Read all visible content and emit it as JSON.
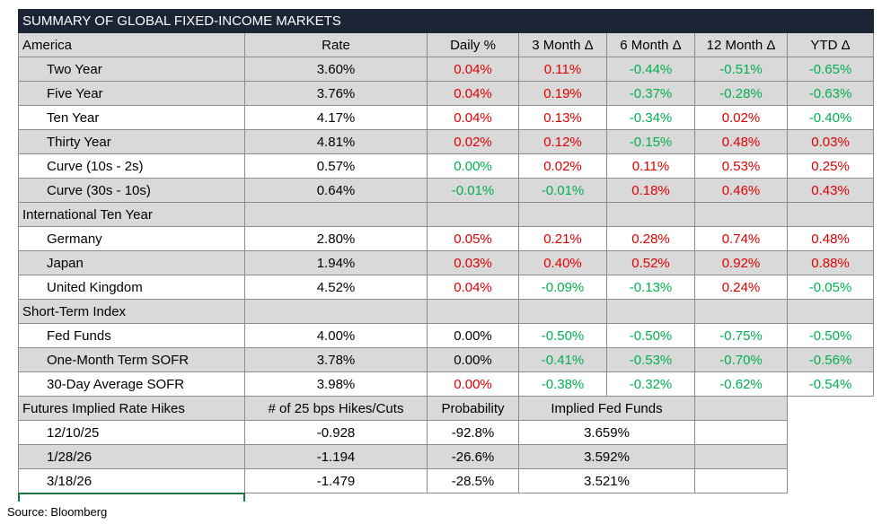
{
  "title": "SUMMARY OF GLOBAL FIXED-INCOME MARKETS",
  "columns": [
    "America",
    "Rate",
    "Daily %",
    "3 Month Δ",
    "6 Month Δ",
    "12 Month Δ",
    "YTD Δ"
  ],
  "groups": [
    {
      "rows": [
        {
          "label": "Two Year",
          "shaded": true,
          "values": [
            "3.60%",
            "0.04%",
            "0.11%",
            "-0.44%",
            "-0.51%",
            "-0.65%"
          ],
          "colors": [
            "#000000",
            "#e00000",
            "#e00000",
            "#00b050",
            "#00b050",
            "#00b050"
          ]
        },
        {
          "label": "Five Year",
          "shaded": true,
          "values": [
            "3.76%",
            "0.04%",
            "0.19%",
            "-0.37%",
            "-0.28%",
            "-0.63%"
          ],
          "colors": [
            "#000000",
            "#e00000",
            "#e00000",
            "#00b050",
            "#00b050",
            "#00b050"
          ]
        },
        {
          "label": "Ten Year",
          "shaded": false,
          "values": [
            "4.17%",
            "0.04%",
            "0.13%",
            "-0.34%",
            "0.02%",
            "-0.40%"
          ],
          "colors": [
            "#000000",
            "#e00000",
            "#e00000",
            "#00b050",
            "#e00000",
            "#00b050"
          ]
        },
        {
          "label": "Thirty Year",
          "shaded": true,
          "values": [
            "4.81%",
            "0.02%",
            "0.12%",
            "-0.15%",
            "0.48%",
            "0.03%"
          ],
          "colors": [
            "#000000",
            "#e00000",
            "#e00000",
            "#00b050",
            "#e00000",
            "#e00000"
          ]
        },
        {
          "label": "Curve (10s - 2s)",
          "shaded": false,
          "values": [
            "0.57%",
            "0.00%",
            "0.02%",
            "0.11%",
            "0.53%",
            "0.25%"
          ],
          "colors": [
            "#000000",
            "#00b050",
            "#e00000",
            "#e00000",
            "#e00000",
            "#e00000"
          ]
        },
        {
          "label": "Curve (30s - 10s)",
          "shaded": true,
          "values": [
            "0.64%",
            "-0.01%",
            "-0.01%",
            "0.18%",
            "0.46%",
            "0.43%"
          ],
          "colors": [
            "#000000",
            "#00b050",
            "#00b050",
            "#e00000",
            "#e00000",
            "#e00000"
          ]
        }
      ]
    },
    {
      "title": "International Ten Year",
      "rows": [
        {
          "label": "Germany",
          "shaded": false,
          "values": [
            "2.80%",
            "0.05%",
            "0.21%",
            "0.28%",
            "0.74%",
            "0.48%"
          ],
          "colors": [
            "#000000",
            "#e00000",
            "#e00000",
            "#e00000",
            "#e00000",
            "#e00000"
          ]
        },
        {
          "label": "Japan",
          "shaded": true,
          "values": [
            "1.94%",
            "0.03%",
            "0.40%",
            "0.52%",
            "0.92%",
            "0.88%"
          ],
          "colors": [
            "#000000",
            "#e00000",
            "#e00000",
            "#e00000",
            "#e00000",
            "#e00000"
          ]
        },
        {
          "label": "United Kingdom",
          "shaded": false,
          "values": [
            "4.52%",
            "0.04%",
            "-0.09%",
            "-0.13%",
            "0.24%",
            "-0.05%"
          ],
          "colors": [
            "#000000",
            "#e00000",
            "#00b050",
            "#00b050",
            "#e00000",
            "#00b050"
          ]
        }
      ]
    },
    {
      "title": "Short-Term Index",
      "rows": [
        {
          "label": "Fed Funds",
          "shaded": false,
          "values": [
            "4.00%",
            "0.00%",
            "-0.50%",
            "-0.50%",
            "-0.75%",
            "-0.50%"
          ],
          "colors": [
            "#000000",
            "#000000",
            "#00b050",
            "#00b050",
            "#00b050",
            "#00b050"
          ]
        },
        {
          "label": "One-Month Term SOFR",
          "shaded": true,
          "values": [
            "3.78%",
            "0.00%",
            "-0.41%",
            "-0.53%",
            "-0.70%",
            "-0.56%"
          ],
          "colors": [
            "#000000",
            "#000000",
            "#00b050",
            "#00b050",
            "#00b050",
            "#00b050"
          ]
        },
        {
          "label": "30-Day Average SOFR",
          "shaded": false,
          "values": [
            "3.98%",
            "0.00%",
            "-0.38%",
            "-0.32%",
            "-0.62%",
            "-0.54%"
          ],
          "colors": [
            "#000000",
            "#e00000",
            "#00b050",
            "#00b050",
            "#00b050",
            "#00b050"
          ]
        }
      ]
    }
  ],
  "futures": {
    "columns": [
      "Futures Implied Rate Hikes",
      "# of 25 bps Hikes/Cuts",
      "Probability",
      "Implied Fed Funds"
    ],
    "rows": [
      {
        "shaded": false,
        "cells": [
          "12/10/25",
          "-0.928",
          "-92.8%",
          "3.659%"
        ]
      },
      {
        "shaded": true,
        "cells": [
          "1/28/26",
          "-1.194",
          "-26.6%",
          "3.592%"
        ]
      },
      {
        "shaded": false,
        "cells": [
          "3/18/26",
          "-1.479",
          "-28.5%",
          "3.521%"
        ]
      }
    ]
  },
  "source": "Source: Bloomberg"
}
